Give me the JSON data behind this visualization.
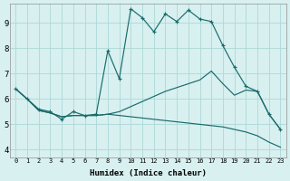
{
  "xlabel": "Humidex (Indice chaleur)",
  "bg_color": "#d8f0f0",
  "line_color": "#1a6b6b",
  "grid_color": "#aed8d8",
  "x_ticks": [
    0,
    1,
    2,
    3,
    4,
    5,
    6,
    7,
    8,
    9,
    10,
    11,
    12,
    13,
    14,
    15,
    16,
    17,
    18,
    19,
    20,
    21,
    22,
    23
  ],
  "y_ticks": [
    4,
    5,
    6,
    7,
    8,
    9
  ],
  "ylim": [
    3.7,
    9.75
  ],
  "xlim": [
    -0.5,
    23.5
  ],
  "series1_y": [
    6.4,
    6.0,
    5.6,
    5.5,
    5.2,
    5.5,
    5.35,
    5.4,
    7.9,
    6.8,
    9.55,
    9.2,
    8.65,
    9.35,
    9.05,
    9.5,
    9.15,
    9.05,
    8.1,
    7.25,
    6.5,
    6.3,
    5.4,
    4.8
  ],
  "series2_y": [
    6.4,
    6.0,
    5.55,
    5.45,
    5.3,
    5.35,
    5.35,
    5.35,
    5.4,
    5.5,
    5.7,
    5.9,
    6.1,
    6.3,
    6.45,
    6.6,
    6.75,
    7.1,
    6.6,
    6.15,
    6.35,
    6.3,
    5.4,
    4.8
  ],
  "series3_y": [
    6.4,
    6.0,
    5.55,
    5.45,
    5.3,
    5.35,
    5.35,
    5.35,
    5.4,
    5.35,
    5.3,
    5.25,
    5.2,
    5.15,
    5.1,
    5.05,
    5.0,
    4.95,
    4.9,
    4.8,
    4.7,
    4.55,
    4.3,
    4.1
  ]
}
